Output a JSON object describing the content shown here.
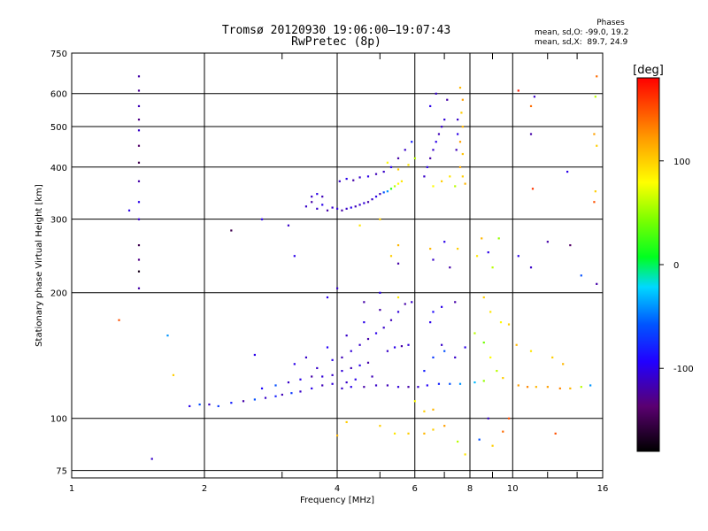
{
  "title_line1": "Tromsø 20120930 19:06:00–19:07:43",
  "title_line2": "RwPretec (8p)",
  "phase_info": {
    "header": "Phases",
    "line1": "mean, sd,O: -99.0, 19.2",
    "line2": "mean, sd,X:  89.7, 24.9"
  },
  "chart_data": {
    "type": "scatter",
    "xlabel": "Frequency [MHz]",
    "ylabel": "Stationary phase Virtual Height [km]",
    "x_scale": "log",
    "y_scale": "log",
    "xlim": [
      1,
      16
    ],
    "ylim": [
      72,
      750
    ],
    "x_ticks": [
      1,
      2,
      4,
      6,
      8,
      10,
      16
    ],
    "x_tick_labels": [
      "1",
      "2",
      "4",
      "6",
      "8",
      "10",
      "16"
    ],
    "x_minor_ticks": [
      3,
      5,
      7,
      9,
      12,
      14
    ],
    "y_ticks": [
      75,
      100,
      200,
      300,
      400,
      500,
      600,
      750
    ],
    "y_tick_labels": [
      "75",
      "100",
      "200",
      "300",
      "400",
      "500",
      "600",
      "750"
    ],
    "grid": true,
    "colorbar": {
      "label": "[deg]",
      "range": [
        -180,
        180
      ],
      "ticks": [
        100,
        0,
        -100
      ],
      "tick_labels": [
        "100",
        "0",
        "-100"
      ]
    },
    "points": [
      [
        1.42,
        660,
        -120
      ],
      [
        1.42,
        610,
        -125
      ],
      [
        1.42,
        560,
        -115
      ],
      [
        1.42,
        520,
        -130
      ],
      [
        1.42,
        490,
        -110
      ],
      [
        1.42,
        450,
        -140
      ],
      [
        1.42,
        410,
        -150
      ],
      [
        1.42,
        370,
        -120
      ],
      [
        1.42,
        330,
        -100
      ],
      [
        1.42,
        300,
        -110
      ],
      [
        1.42,
        260,
        -150
      ],
      [
        1.42,
        240,
        -130
      ],
      [
        1.42,
        225,
        -170
      ],
      [
        1.42,
        205,
        -120
      ],
      [
        1.35,
        315,
        -100
      ],
      [
        1.28,
        172,
        150
      ],
      [
        1.52,
        80,
        -110
      ],
      [
        1.65,
        158,
        -40
      ],
      [
        1.7,
        127,
        100
      ],
      [
        2.3,
        282,
        -150
      ],
      [
        2.6,
        142,
        -100
      ],
      [
        1.85,
        107,
        -100
      ],
      [
        1.95,
        108,
        -60
      ],
      [
        2.05,
        108,
        -110
      ],
      [
        2.15,
        107,
        -70
      ],
      [
        2.3,
        109,
        -80
      ],
      [
        2.45,
        110,
        -120
      ],
      [
        2.6,
        111,
        -60
      ],
      [
        2.75,
        112,
        -110
      ],
      [
        2.9,
        113,
        -80
      ],
      [
        3.0,
        114,
        -115
      ],
      [
        3.15,
        115,
        -70
      ],
      [
        3.3,
        116,
        -110
      ],
      [
        3.5,
        118,
        -100
      ],
      [
        3.7,
        120,
        -115
      ],
      [
        3.9,
        121,
        -105
      ],
      [
        4.1,
        118,
        -110
      ],
      [
        4.3,
        119,
        -100
      ],
      [
        4.6,
        119,
        -120
      ],
      [
        4.9,
        120,
        -110
      ],
      [
        5.2,
        120,
        -115
      ],
      [
        5.5,
        119,
        -105
      ],
      [
        5.8,
        119,
        -120
      ],
      [
        6.1,
        119,
        -110
      ],
      [
        6.4,
        120,
        -95
      ],
      [
        6.8,
        121,
        -80
      ],
      [
        7.2,
        121,
        -60
      ],
      [
        7.6,
        121,
        -40
      ],
      [
        8.2,
        122,
        -30
      ],
      [
        8.6,
        123,
        50
      ],
      [
        2.7,
        118,
        -90
      ],
      [
        2.9,
        120,
        -60
      ],
      [
        3.1,
        122,
        -110
      ],
      [
        3.3,
        124,
        -100
      ],
      [
        3.5,
        126,
        -120
      ],
      [
        3.7,
        126,
        -105
      ],
      [
        3.9,
        127,
        -110
      ],
      [
        4.1,
        130,
        -105
      ],
      [
        4.3,
        132,
        -115
      ],
      [
        4.5,
        134,
        -100
      ],
      [
        4.7,
        136,
        -120
      ],
      [
        3.6,
        132,
        -110
      ],
      [
        3.9,
        138,
        -100
      ],
      [
        4.1,
        140,
        -115
      ],
      [
        4.3,
        145,
        -105
      ],
      [
        4.5,
        150,
        -110
      ],
      [
        4.7,
        155,
        -120
      ],
      [
        4.9,
        160,
        -100
      ],
      [
        5.1,
        165,
        -110
      ],
      [
        5.3,
        172,
        -115
      ],
      [
        5.5,
        180,
        -105
      ],
      [
        5.7,
        188,
        -120
      ],
      [
        5.2,
        145,
        -110
      ],
      [
        5.4,
        148,
        -100
      ],
      [
        5.6,
        149,
        -120
      ],
      [
        5.8,
        150,
        -105
      ],
      [
        3.2,
        135,
        -100
      ],
      [
        3.4,
        140,
        -110
      ],
      [
        3.8,
        148,
        -95
      ],
      [
        4.2,
        158,
        -110
      ],
      [
        4.6,
        170,
        -100
      ],
      [
        5.0,
        182,
        -120
      ],
      [
        4.2,
        122,
        -110
      ],
      [
        4.4,
        124,
        -100
      ],
      [
        4.8,
        126,
        -115
      ],
      [
        6.3,
        130,
        -80
      ],
      [
        6.6,
        140,
        -70
      ],
      [
        6.9,
        150,
        -110
      ],
      [
        6.5,
        170,
        -100
      ],
      [
        6.6,
        180,
        -90
      ],
      [
        7.0,
        145,
        -60
      ],
      [
        7.4,
        140,
        -110
      ],
      [
        7.8,
        148,
        -100
      ],
      [
        8.2,
        160,
        60
      ],
      [
        8.6,
        152,
        40
      ],
      [
        8.9,
        140,
        80
      ],
      [
        9.2,
        130,
        60
      ],
      [
        9.5,
        125,
        100
      ],
      [
        10.3,
        120,
        120
      ],
      [
        10.8,
        119,
        130
      ],
      [
        11.3,
        119,
        110
      ],
      [
        12.0,
        119,
        120
      ],
      [
        12.8,
        118,
        130
      ],
      [
        13.5,
        118,
        110
      ],
      [
        14.3,
        119,
        60
      ],
      [
        15.0,
        120,
        -40
      ],
      [
        11.0,
        145,
        90
      ],
      [
        12.3,
        140,
        100
      ],
      [
        13.0,
        135,
        110
      ],
      [
        10.2,
        150,
        110
      ],
      [
        3.4,
        322,
        -110
      ],
      [
        3.5,
        330,
        -120
      ],
      [
        3.6,
        318,
        -110
      ],
      [
        3.7,
        325,
        -100
      ],
      [
        3.8,
        315,
        -120
      ],
      [
        3.9,
        320,
        -110
      ],
      [
        4.0,
        318,
        -105
      ],
      [
        4.1,
        315,
        -120
      ],
      [
        4.2,
        318,
        -110
      ],
      [
        4.3,
        320,
        -100
      ],
      [
        4.4,
        322,
        -115
      ],
      [
        4.5,
        325,
        -110
      ],
      [
        4.6,
        328,
        -105
      ],
      [
        4.7,
        330,
        -120
      ],
      [
        4.8,
        335,
        -110
      ],
      [
        4.9,
        340,
        -100
      ],
      [
        5.0,
        345,
        -115
      ],
      [
        5.1,
        348,
        -60
      ],
      [
        5.2,
        350,
        -40
      ],
      [
        5.3,
        355,
        20
      ],
      [
        5.4,
        360,
        60
      ],
      [
        5.5,
        365,
        80
      ],
      [
        5.6,
        370,
        90
      ],
      [
        3.5,
        340,
        -110
      ],
      [
        3.6,
        345,
        -100
      ],
      [
        3.7,
        340,
        -115
      ],
      [
        4.05,
        370,
        -110
      ],
      [
        4.2,
        375,
        -100
      ],
      [
        4.35,
        372,
        -120
      ],
      [
        4.5,
        378,
        -110
      ],
      [
        4.7,
        380,
        -100
      ],
      [
        4.9,
        385,
        -115
      ],
      [
        5.1,
        390,
        -110
      ],
      [
        5.3,
        400,
        -100
      ],
      [
        5.5,
        420,
        -120
      ],
      [
        5.7,
        440,
        -110
      ],
      [
        5.9,
        460,
        -80
      ],
      [
        5.2,
        410,
        80
      ],
      [
        5.5,
        395,
        100
      ],
      [
        5.8,
        405,
        90
      ],
      [
        6.0,
        420,
        60
      ],
      [
        6.3,
        380,
        -110
      ],
      [
        6.4,
        400,
        -100
      ],
      [
        6.5,
        420,
        -120
      ],
      [
        6.6,
        440,
        -110
      ],
      [
        6.7,
        460,
        -100
      ],
      [
        6.8,
        480,
        -115
      ],
      [
        6.9,
        500,
        -110
      ],
      [
        7.0,
        520,
        -105
      ],
      [
        6.5,
        560,
        -100
      ],
      [
        6.7,
        600,
        -110
      ],
      [
        7.1,
        580,
        -120
      ],
      [
        6.6,
        360,
        80
      ],
      [
        6.9,
        370,
        100
      ],
      [
        7.2,
        380,
        90
      ],
      [
        7.6,
        620,
        110
      ],
      [
        7.7,
        580,
        120
      ],
      [
        7.65,
        540,
        100
      ],
      [
        7.7,
        500,
        110
      ],
      [
        7.6,
        460,
        120
      ],
      [
        7.7,
        430,
        105
      ],
      [
        7.6,
        400,
        115
      ],
      [
        7.7,
        380,
        100
      ],
      [
        7.5,
        520,
        -110
      ],
      [
        7.5,
        480,
        -100
      ],
      [
        7.45,
        440,
        -115
      ],
      [
        7.8,
        365,
        110
      ],
      [
        7.4,
        360,
        60
      ],
      [
        5.0,
        300,
        100
      ],
      [
        4.5,
        290,
        90
      ],
      [
        5.5,
        260,
        110
      ],
      [
        5.3,
        245,
        100
      ],
      [
        5.5,
        235,
        -120
      ],
      [
        6.5,
        255,
        110
      ],
      [
        6.6,
        240,
        -110
      ],
      [
        7.0,
        265,
        -100
      ],
      [
        7.2,
        230,
        -120
      ],
      [
        7.5,
        255,
        100
      ],
      [
        8.3,
        245,
        90
      ],
      [
        8.5,
        270,
        110
      ],
      [
        8.8,
        250,
        -100
      ],
      [
        9.0,
        230,
        60
      ],
      [
        9.3,
        270,
        50
      ],
      [
        10.3,
        245,
        -100
      ],
      [
        11.0,
        230,
        -110
      ],
      [
        12.0,
        265,
        -120
      ],
      [
        13.5,
        260,
        -140
      ],
      [
        14.3,
        220,
        -60
      ],
      [
        15.5,
        210,
        -120
      ],
      [
        15.3,
        330,
        150
      ],
      [
        15.4,
        350,
        100
      ],
      [
        15.5,
        450,
        100
      ],
      [
        15.3,
        480,
        120
      ],
      [
        15.5,
        660,
        140
      ],
      [
        15.4,
        590,
        60
      ],
      [
        11.2,
        590,
        -110
      ],
      [
        11.0,
        560,
        140
      ],
      [
        11.0,
        480,
        -120
      ],
      [
        10.3,
        610,
        170
      ],
      [
        11.1,
        355,
        160
      ],
      [
        13.3,
        390,
        -100
      ],
      [
        3.2,
        245,
        -100
      ],
      [
        3.1,
        290,
        -110
      ],
      [
        2.7,
        300,
        -100
      ],
      [
        9.8,
        100,
        150
      ],
      [
        9.5,
        93,
        140
      ],
      [
        12.5,
        92,
        150
      ],
      [
        5.0,
        96,
        100
      ],
      [
        5.4,
        92,
        90
      ],
      [
        5.8,
        92,
        100
      ],
      [
        6.3,
        92,
        110
      ],
      [
        6.6,
        94,
        100
      ],
      [
        7.0,
        96,
        120
      ],
      [
        7.5,
        88,
        60
      ],
      [
        7.8,
        82,
        90
      ],
      [
        8.4,
        89,
        -60
      ],
      [
        8.8,
        100,
        -110
      ],
      [
        9.0,
        86,
        100
      ],
      [
        4.2,
        98,
        100
      ],
      [
        4.0,
        91,
        110
      ],
      [
        6.0,
        110,
        80
      ],
      [
        6.3,
        104,
        100
      ],
      [
        6.6,
        105,
        110
      ],
      [
        3.8,
        195,
        -100
      ],
      [
        4.0,
        205,
        -110
      ],
      [
        4.6,
        190,
        -120
      ],
      [
        5.0,
        200,
        -100
      ],
      [
        5.5,
        195,
        90
      ],
      [
        5.9,
        190,
        -110
      ],
      [
        6.9,
        185,
        -100
      ],
      [
        7.4,
        190,
        -120
      ],
      [
        8.6,
        195,
        100
      ],
      [
        8.9,
        180,
        90
      ],
      [
        9.4,
        170,
        80
      ],
      [
        9.8,
        168,
        100
      ]
    ]
  }
}
